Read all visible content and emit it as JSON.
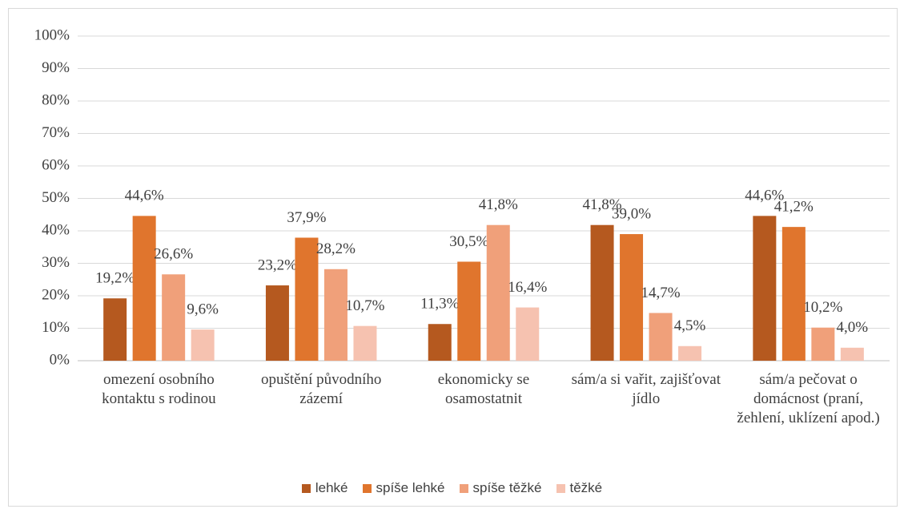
{
  "chart_data": {
    "type": "bar",
    "categories": [
      "omezení osobního kontaktu s rodinou",
      "opuštění původního zázemí",
      "ekonomicky se osamostatnit",
      "sám/a si vařit, zajišťovat jídlo",
      "sám/a pečovat o domácnost (praní, žehlení, uklízení apod.)"
    ],
    "series": [
      {
        "name": "lehké",
        "color": "#b5591f",
        "values": [
          19.2,
          23.2,
          11.3,
          41.8,
          44.6
        ],
        "value_labels": [
          "19,2%",
          "23,2%",
          "11,3%",
          "41,8%",
          "44,6%"
        ]
      },
      {
        "name": "spíše lehké",
        "color": "#e0752d",
        "values": [
          44.6,
          37.9,
          30.5,
          39.0,
          41.2
        ],
        "value_labels": [
          "44,6%",
          "37,9%",
          "30,5%",
          "39,0%",
          "41,2%"
        ]
      },
      {
        "name": "spíše těžké",
        "color": "#f0a07a",
        "values": [
          26.6,
          28.2,
          41.8,
          14.7,
          10.2
        ],
        "value_labels": [
          "26,6%",
          "28,2%",
          "41,8%",
          "14,7%",
          "10,2%"
        ]
      },
      {
        "name": "těžké",
        "color": "#f6c2b0",
        "values": [
          9.6,
          10.7,
          16.4,
          4.5,
          4.0
        ],
        "value_labels": [
          "9,6%",
          "10,7%",
          "16,4%",
          "4,5%",
          "4,0%"
        ]
      }
    ],
    "ylim": [
      0,
      100
    ],
    "yticks": [
      {
        "value": 0,
        "label": "0%"
      },
      {
        "value": 10,
        "label": "10%"
      },
      {
        "value": 20,
        "label": "20%"
      },
      {
        "value": 30,
        "label": "30%"
      },
      {
        "value": 40,
        "label": "40%"
      },
      {
        "value": 50,
        "label": "50%"
      },
      {
        "value": 60,
        "label": "60%"
      },
      {
        "value": 70,
        "label": "70%"
      },
      {
        "value": 80,
        "label": "80%"
      },
      {
        "value": 90,
        "label": "90%"
      },
      {
        "value": 100,
        "label": "100%"
      }
    ],
    "grid": true,
    "legend": "bottom"
  }
}
